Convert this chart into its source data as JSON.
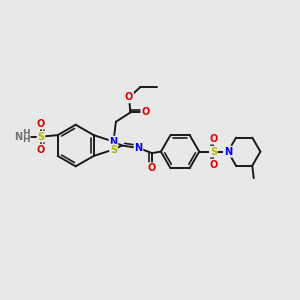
{
  "bg_color": "#e8e8e8",
  "bond_color": "#1a1a1a",
  "bond_width": 1.4,
  "atom_colors": {
    "N": "#0000ee",
    "O": "#dd0000",
    "S": "#bbbb00",
    "H": "#707070",
    "C": "#1a1a1a"
  },
  "font_size": 7.0,
  "fig_size": [
    3.0,
    3.0
  ],
  "dpi": 100
}
